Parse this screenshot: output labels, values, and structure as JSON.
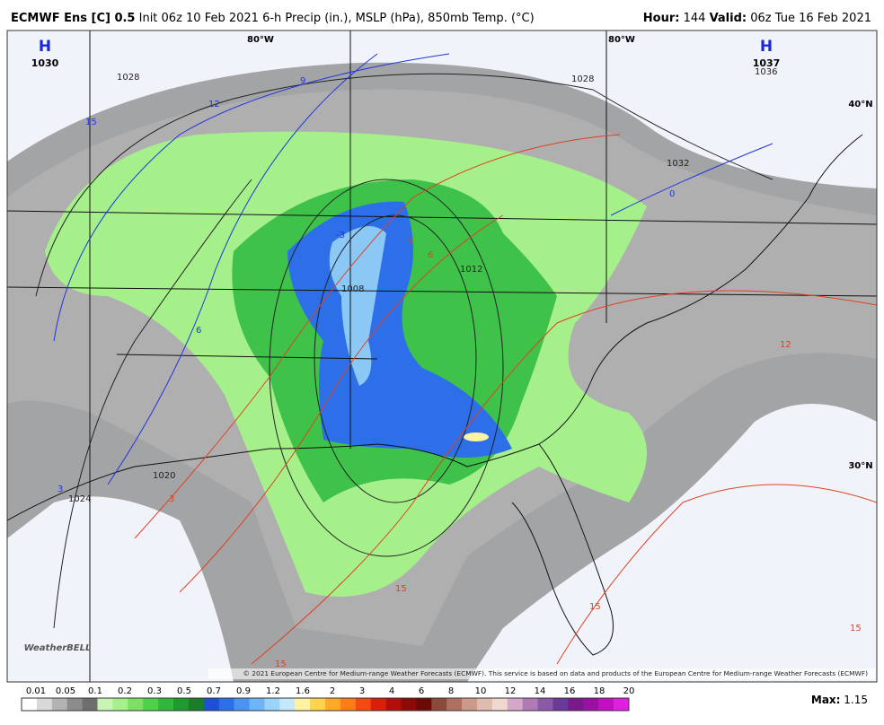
{
  "header": {
    "model": "ECMWF Ens [C] 0.5",
    "init": "Init 06z 10 Feb 2021",
    "fields": "6-h Precip (in.), MSLP (hPa), 850mb Temp. (°C)",
    "hour_label": "Hour:",
    "hour": "144",
    "valid_label": "Valid:",
    "valid": "06z Tue 16 Feb 2021"
  },
  "map": {
    "highs": [
      {
        "symbol": "H",
        "pressure": "1030"
      },
      {
        "symbol": "H",
        "pressure": "1037"
      }
    ],
    "grid_labels": [
      "80°W",
      "80°W",
      "40°N",
      "30°N"
    ],
    "isobar_labels": [
      "1028",
      "1028",
      "1032",
      "1036",
      "1012",
      "1008",
      "1020",
      "1024"
    ],
    "isotherm_labels": [
      "15",
      "12",
      "9",
      "6",
      "3",
      "0",
      "-3",
      "3",
      "15",
      "15",
      "15",
      "15",
      "12",
      "0",
      "6"
    ],
    "logo": "WeatherBELL",
    "copyright": "© 2021 European Centre for Medium-range Weather Forecasts (ECMWF). This service is based on data and products of the European Centre for Medium-range Weather Forecasts (ECMWF)"
  },
  "colorbar": {
    "labels": [
      "0.01",
      "0.05",
      "0.1",
      "0.2",
      "0.3",
      "0.5",
      "0.7",
      "0.9",
      "1.2",
      "1.6",
      "2",
      "3",
      "4",
      "6",
      "8",
      "10",
      "12",
      "14",
      "16",
      "18",
      "20"
    ],
    "colors": [
      "#ffffff",
      "#d9d9d9",
      "#b3b3b3",
      "#8c8c8c",
      "#6e6e6e",
      "#c9f5b4",
      "#a6f08c",
      "#7be064",
      "#4fd24a",
      "#2fb83a",
      "#1e9a2e",
      "#1a7d27",
      "#1f4fd6",
      "#2d6fe8",
      "#4a93f0",
      "#6db5f6",
      "#9bd3fa",
      "#c6e8fc",
      "#fff2a0",
      "#ffd34d",
      "#ffa928",
      "#ff7d16",
      "#f24a10",
      "#d91e0c",
      "#b30f0a",
      "#8c0a08",
      "#6b0a06",
      "#8c4a3a",
      "#b07060",
      "#cc9a8a",
      "#e0bcb0",
      "#f0d8d0",
      "#d4a8c8",
      "#b07ab4",
      "#8c58a8",
      "#6a3a98",
      "#7a1a8a",
      "#9a10a0",
      "#c010c0",
      "#e020e0"
    ]
  },
  "footer": {
    "max_label": "Max:",
    "max": "1.15"
  }
}
